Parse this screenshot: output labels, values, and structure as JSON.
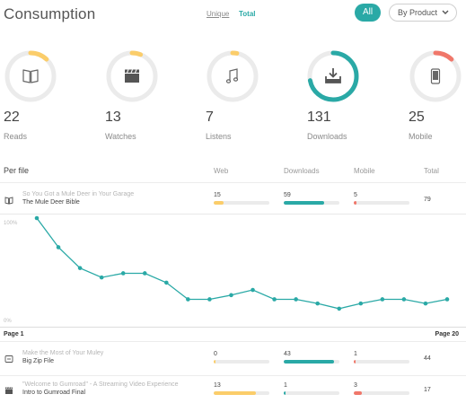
{
  "header": {
    "title": "Consumption",
    "toggle_unique": "Unique",
    "toggle_total": "Total",
    "all_button": "All",
    "product_button": "By Product",
    "chevron_icon": "chevron-down-icon"
  },
  "colors": {
    "accent": "#2aa9a6",
    "yellow": "#fbcd6a",
    "red": "#f0776a",
    "track": "#ebebeb"
  },
  "stats": [
    {
      "value": "22",
      "label": "Reads",
      "icon": "book-icon",
      "fraction": 0.12,
      "color": "#fbcd6a"
    },
    {
      "value": "13",
      "label": "Watches",
      "icon": "clapperboard-icon",
      "fraction": 0.06,
      "color": "#fbcd6a"
    },
    {
      "value": "7",
      "label": "Listens",
      "icon": "music-note-icon",
      "fraction": 0.03,
      "color": "#fbcd6a"
    },
    {
      "value": "131",
      "label": "Downloads",
      "icon": "download-tray-icon",
      "fraction": 0.72,
      "color": "#2aa9a6"
    },
    {
      "value": "25",
      "label": "Mobile",
      "icon": "mobile-phone-icon",
      "fraction": 0.12,
      "color": "#f0776a"
    }
  ],
  "per_file": {
    "title": "Per file",
    "columns": [
      "Web",
      "Downloads",
      "Mobile",
      "Total"
    ],
    "rows": [
      {
        "icon": "book-icon",
        "subtitle": "So You Got a Mule Deer in Your Garage",
        "name": "The Mule Deer Bible",
        "web": "15",
        "web_fraction": 0.18,
        "downloads": "59",
        "downloads_fraction": 0.72,
        "mobile": "5",
        "mobile_fraction": 0.05,
        "total": "79"
      },
      {
        "icon": "archive-icon",
        "subtitle": "Make the Most of Your Muley",
        "name": "Big Zip File",
        "web": "0",
        "web_fraction": 0.04,
        "downloads": "43",
        "downloads_fraction": 0.9,
        "mobile": "1",
        "mobile_fraction": 0.03,
        "total": "44"
      },
      {
        "icon": "clapperboard-icon",
        "subtitle": "\"Welcome to Gumroad\" - A Streaming Video Experience",
        "name": "Intro to Gumroad Final",
        "web": "13",
        "web_fraction": 0.75,
        "downloads": "1",
        "downloads_fraction": 0.03,
        "mobile": "3",
        "mobile_fraction": 0.15,
        "total": "17"
      }
    ]
  },
  "chart_data": {
    "type": "line",
    "y_top_label": "100%",
    "y_bottom_label": "0%",
    "ylim": [
      0,
      100
    ],
    "x_start_label": "Page 1",
    "x_end_label": "Page 20",
    "series": [
      {
        "values": [
          100,
          72,
          52,
          43,
          47,
          47,
          38,
          22,
          22,
          26,
          31,
          22,
          22,
          18,
          13,
          18,
          22,
          22,
          18,
          22
        ]
      }
    ]
  }
}
